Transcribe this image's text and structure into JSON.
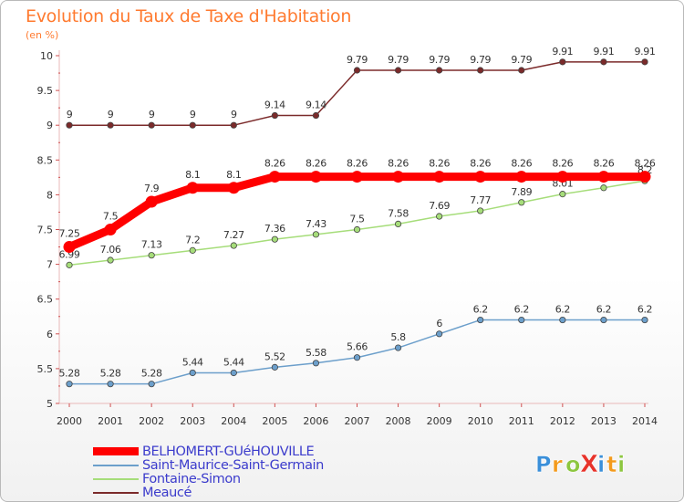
{
  "chart_data": {
    "type": "line",
    "title": "Evolution du Taux de Taxe d'Habitation",
    "ylabel": "(en %)",
    "xlabel": "",
    "ylim": [
      5,
      10
    ],
    "yticks": [
      "5",
      "5.5",
      "6",
      "6.5",
      "7",
      "7.5",
      "8",
      "8.5",
      "9",
      "9.5",
      "10"
    ],
    "x": [
      "2000",
      "2001",
      "2002",
      "2003",
      "2004",
      "2005",
      "2006",
      "2007",
      "2008",
      "2009",
      "2010",
      "2011",
      "2012",
      "2013",
      "2014"
    ],
    "series": [
      {
        "name": "Meaucé",
        "color": "#7b2a2a",
        "values": [
          9,
          9,
          9,
          9,
          9,
          9.14,
          9.14,
          9.79,
          9.79,
          9.79,
          9.79,
          9.79,
          9.91,
          9.91,
          9.91
        ],
        "labels": [
          "9",
          "9",
          "9",
          "9",
          "9",
          "9.14",
          "9.14",
          "9.79",
          "9.79",
          "9.79",
          "9.79",
          "9.79",
          "9.91",
          "9.91",
          "9.91"
        ]
      },
      {
        "name": "Fontaine-Simon",
        "color": "#a6dd7a",
        "values": [
          6.99,
          7.06,
          7.13,
          7.2,
          7.27,
          7.36,
          7.43,
          7.5,
          7.58,
          7.69,
          7.77,
          7.89,
          8.01,
          8.1,
          8.2
        ],
        "labels": [
          "6.99",
          "7.06",
          "7.13",
          "7.2",
          "7.27",
          "7.36",
          "7.43",
          "7.5",
          "7.58",
          "7.69",
          "7.77",
          "7.89",
          "8.01",
          "8.1",
          "8.2"
        ]
      },
      {
        "name": "Saint-Maurice-Saint-Germain",
        "color": "#6c9fcb",
        "values": [
          5.28,
          5.28,
          5.28,
          5.44,
          5.44,
          5.52,
          5.58,
          5.66,
          5.8,
          6,
          6.2,
          6.2,
          6.2,
          6.2,
          6.2
        ],
        "labels": [
          "5.28",
          "5.28",
          "5.28",
          "5.44",
          "5.44",
          "5.52",
          "5.58",
          "5.66",
          "5.8",
          "6",
          "6.2",
          "6.2",
          "6.2",
          "6.2",
          "6.2"
        ]
      },
      {
        "name": "BELHOMERT-GUéHOUVILLE",
        "color": "#ff0000",
        "values": [
          7.25,
          7.5,
          7.9,
          8.1,
          8.1,
          8.26,
          8.26,
          8.26,
          8.26,
          8.26,
          8.26,
          8.26,
          8.26,
          8.26,
          8.26
        ],
        "labels": [
          "7.25",
          "7.5",
          "7.9",
          "8.1",
          "8.1",
          "8.26",
          "8.26",
          "8.26",
          "8.26",
          "8.26",
          "8.26",
          "8.26",
          "8.26",
          "8.26",
          "8.26"
        ]
      }
    ],
    "legend": [
      "BELHOMERT-GUéHOUVILLE",
      "Saint-Maurice-Saint-Germain",
      "Fontaine-Simon",
      "Meaucé"
    ],
    "legend_placement": "bottom-left",
    "grid": false
  },
  "logo": {
    "text": "ProXiti",
    "letters": [
      "P",
      "r",
      "o",
      "X",
      "i",
      "t",
      "i"
    ]
  }
}
